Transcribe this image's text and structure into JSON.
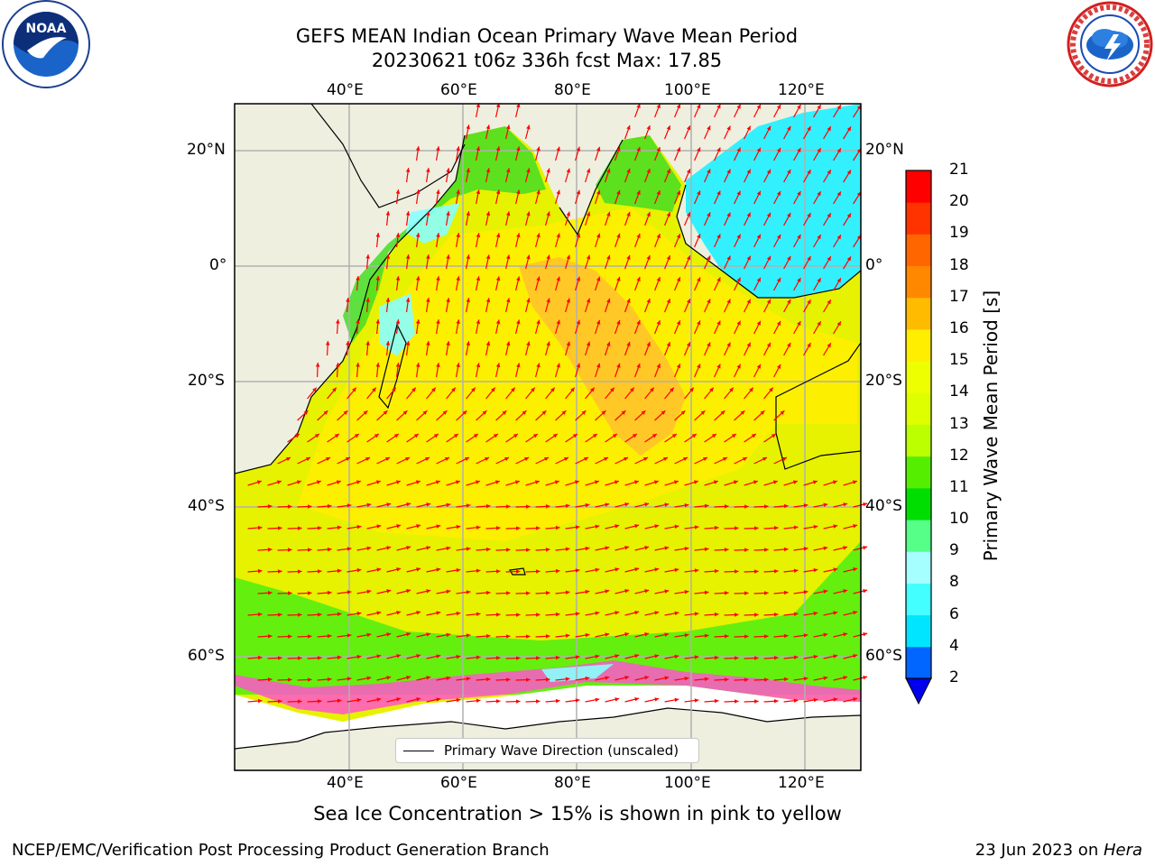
{
  "title": {
    "line1": "GEFS MEAN Indian Ocean Primary Wave Mean Period",
    "line2": "20230621 t06z 336h fcst   Max: 17.85"
  },
  "map": {
    "lon_labels": [
      "40°E",
      "60°E",
      "80°E",
      "100°E",
      "120°E"
    ],
    "lat_labels": [
      "20°N",
      "0°",
      "20°S",
      "40°S",
      "60°S"
    ],
    "lon_range": [
      20,
      130
    ],
    "lat_range": [
      -73,
      28
    ],
    "gridlines": true,
    "colors": {
      "land": "#efefe0",
      "ice_free_background": "#ffffff",
      "arrow": "#ff0000",
      "coastline": "#000000"
    }
  },
  "legend": {
    "label": "Primary Wave Direction (unscaled)",
    "placement": "lower-center"
  },
  "colorbar": {
    "label": "Primary Wave Mean Period [s]",
    "ticks": [
      "2",
      "4",
      "6",
      "8",
      "9",
      "10",
      "11",
      "12",
      "13",
      "14",
      "15",
      "16",
      "17",
      "18",
      "19",
      "20",
      "21"
    ],
    "colors": [
      "#0066ff",
      "#00e5ff",
      "#44ffff",
      "#a6ffff",
      "#55ff88",
      "#00dd00",
      "#55ee00",
      "#bbff00",
      "#ddff00",
      "#eeff00",
      "#ffee00",
      "#ffbb00",
      "#ff8800",
      "#ff6600",
      "#ff3300",
      "#ff0000"
    ],
    "extend_color": "#0000ee"
  },
  "note": "Sea Ice Concentration > 15% is shown in pink to yellow",
  "footer": {
    "left": "NCEP/EMC/Verification Post Processing Product Generation Branch",
    "right_date": "23 Jun 2023 on ",
    "right_host": "Hera"
  },
  "logos": {
    "left": "noaa-logo",
    "right": "national-weather-service-logo",
    "noaa_text": "NOAA"
  }
}
